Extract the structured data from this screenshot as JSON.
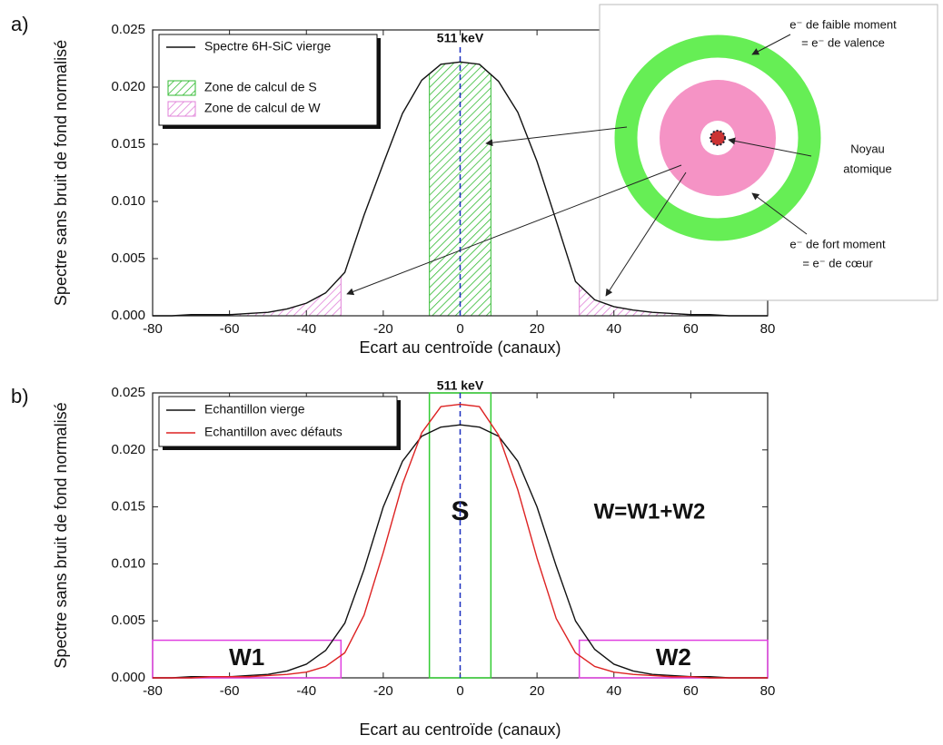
{
  "chart_data": [
    {
      "type": "line",
      "panel_label": "a)",
      "x_label": "Ecart au centroïde (canaux)",
      "y_label": "Spectre sans bruit de fond normalisé",
      "xlim": [
        -80,
        80
      ],
      "xticks": [
        -80,
        -60,
        -40,
        -20,
        0,
        20,
        40,
        60,
        80
      ],
      "ylim": [
        0,
        0.025
      ],
      "yticks": [
        {
          "value": 0,
          "label": "0.000"
        },
        0.005,
        {
          "value": 0.01,
          "label": "0.010"
        },
        0.015,
        {
          "value": 0.02,
          "label": "0.020"
        },
        0.025
      ],
      "x": [
        -80,
        -75,
        -70,
        -65,
        -60,
        -55,
        -50,
        -45,
        -40,
        -35,
        -30,
        -25,
        -20,
        -15,
        -10,
        -5,
        0,
        5,
        10,
        15,
        20,
        25,
        30,
        35,
        40,
        45,
        50,
        55,
        60,
        65,
        70,
        75,
        80
      ],
      "series": [
        {
          "name": "Spectre 6H-SiC vierge",
          "color": "#111111",
          "values": [
            0,
            0,
            0.0001,
            0.0001,
            0.0001,
            0.0002,
            0.0003,
            0.0006,
            0.0011,
            0.002,
            0.0038,
            0.0088,
            0.0133,
            0.0177,
            0.0206,
            0.022,
            0.0222,
            0.022,
            0.0205,
            0.0178,
            0.0135,
            0.0083,
            0.003,
            0.0014,
            0.0008,
            0.0005,
            0.0003,
            0.0002,
            0.0001,
            0.0001,
            0,
            0,
            0
          ]
        }
      ],
      "zones": [
        {
          "name": "Zone de calcul de S",
          "color": "#33bb33",
          "ranges": [
            [
              -8,
              8
            ]
          ]
        },
        {
          "name": "Zone de calcul de W",
          "color": "#e080d8",
          "ranges": [
            [
              -80,
              -31
            ],
            [
              31,
              80
            ]
          ]
        }
      ],
      "reference_line": {
        "x": 0,
        "label": "511 keV",
        "color": "#1a2fbf"
      },
      "inset_labels": [
        "e⁻ de faible moment",
        "= e⁻ de valence",
        "Noyau",
        "atomique",
        "e⁻ de fort moment",
        "= e⁻ de cœur"
      ]
    },
    {
      "type": "line",
      "panel_label": "b)",
      "x_label": "Ecart au centroïde (canaux)",
      "y_label": "Spectre sans bruit de fond normalisé",
      "xlim": [
        -80,
        80
      ],
      "xticks": [
        -80,
        -60,
        -40,
        -20,
        0,
        20,
        40,
        60,
        80
      ],
      "ylim": [
        0,
        0.025
      ],
      "yticks": [
        {
          "value": 0,
          "label": "0.000"
        },
        0.005,
        {
          "value": 0.01,
          "label": "0.010"
        },
        0.015,
        {
          "value": 0.02,
          "label": "0.020"
        },
        0.025
      ],
      "x": [
        -80,
        -75,
        -70,
        -65,
        -60,
        -55,
        -50,
        -45,
        -40,
        -35,
        -30,
        -25,
        -20,
        -15,
        -10,
        -5,
        0,
        5,
        10,
        15,
        20,
        25,
        30,
        35,
        40,
        45,
        50,
        55,
        60,
        65,
        70,
        75,
        80
      ],
      "series": [
        {
          "name": "Echantillon vierge",
          "color": "#111111",
          "values": [
            0,
            0,
            0.0001,
            0.0001,
            0.0001,
            0.0002,
            0.0003,
            0.0006,
            0.0012,
            0.0024,
            0.0048,
            0.0095,
            0.015,
            0.019,
            0.0212,
            0.022,
            0.0222,
            0.022,
            0.0212,
            0.019,
            0.015,
            0.0098,
            0.005,
            0.0025,
            0.0012,
            0.0006,
            0.0003,
            0.0002,
            0.0001,
            0.0001,
            0,
            0,
            0
          ]
        },
        {
          "name": "Echantillon avec défauts",
          "color": "#dd2222",
          "values": [
            0,
            0,
            0,
            0.0001,
            0.0001,
            0.0001,
            0.0002,
            0.0003,
            0.0005,
            0.001,
            0.0022,
            0.0055,
            0.011,
            0.017,
            0.0215,
            0.0238,
            0.024,
            0.0238,
            0.0213,
            0.0165,
            0.0105,
            0.0052,
            0.0022,
            0.001,
            0.0005,
            0.0003,
            0.0002,
            0.0001,
            0.0001,
            0,
            0,
            0,
            0
          ]
        }
      ],
      "boxes": [
        {
          "label": "S",
          "range": [
            -8,
            8
          ],
          "height": 0.025,
          "color": "#33cc33"
        },
        {
          "label": "W1",
          "range": [
            -80,
            -31
          ],
          "height": 0.0033,
          "color": "#e040e0"
        },
        {
          "label": "W2",
          "range": [
            31,
            80
          ],
          "height": 0.0033,
          "color": "#e040e0"
        }
      ],
      "reference_line": {
        "x": 0,
        "label": "511 keV",
        "color": "#1a2fbf"
      },
      "annotations": [
        "W=W1+W2"
      ]
    }
  ]
}
